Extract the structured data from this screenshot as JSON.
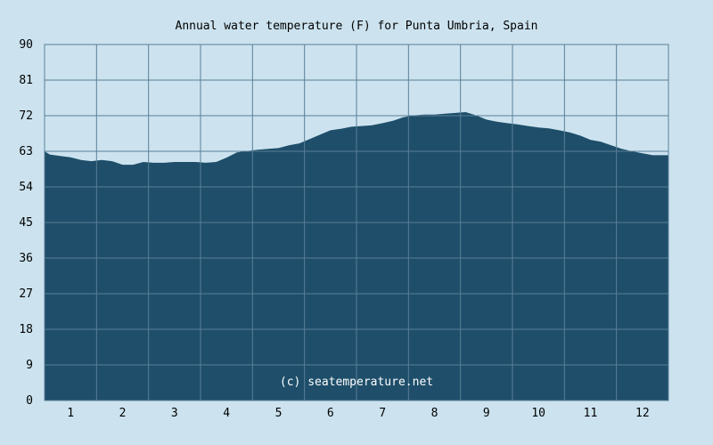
{
  "chart_data": {
    "type": "area",
    "title": "Annual water temperature (F) for Punta Umbria, Spain",
    "xlabel": "",
    "ylabel": "",
    "xlim": [
      0.4,
      12.4
    ],
    "ylim": [
      0,
      90
    ],
    "yticks": [
      "0",
      "9",
      "18",
      "27",
      "36",
      "45",
      "54",
      "63",
      "72",
      "81",
      "90"
    ],
    "xticks": [
      "1",
      "2",
      "3",
      "4",
      "5",
      "6",
      "7",
      "8",
      "9",
      "10",
      "11",
      "12"
    ],
    "grid": true,
    "annotation": "(c) seatemperature.net",
    "colors": {
      "background": "#cce3ef",
      "area": "#1e4e6a",
      "grid": "#5a7f97"
    },
    "series": [
      {
        "x": [
          0.4,
          0.5,
          0.7,
          0.9,
          1.1,
          1.3,
          1.5,
          1.7,
          1.9,
          2.1,
          2.3,
          2.5,
          2.7,
          2.9,
          3.1,
          3.3,
          3.5,
          3.7,
          3.9,
          4.1,
          4.3,
          4.5,
          4.7,
          4.9,
          5.1,
          5.3,
          5.5,
          5.7,
          5.9,
          6.1,
          6.3,
          6.5,
          6.7,
          6.9,
          7.1,
          7.3,
          7.5,
          7.7,
          7.9,
          8.1,
          8.3,
          8.5,
          8.7,
          8.9,
          9.1,
          9.3,
          9.5,
          9.7,
          9.9,
          10.1,
          10.3,
          10.5,
          10.7,
          10.9,
          11.1,
          11.3,
          11.5,
          11.7,
          11.9,
          12.1,
          12.4
        ],
        "values": [
          63,
          62.2,
          61.8,
          61.5,
          60.8,
          60.5,
          60.8,
          60.5,
          59.6,
          59.6,
          60.3,
          60.1,
          60.1,
          60.3,
          60.3,
          60.3,
          60.1,
          60.3,
          61.4,
          62.7,
          63.1,
          63.4,
          63.6,
          63.8,
          64.5,
          65,
          66.1,
          67.2,
          68.3,
          68.7,
          69.2,
          69.4,
          69.6,
          70.1,
          70.7,
          71.6,
          72.1,
          72.3,
          72.3,
          72.5,
          72.7,
          72.9,
          72.1,
          71,
          70.5,
          70.1,
          69.8,
          69.4,
          69,
          68.8,
          68.3,
          67.8,
          67,
          65.9,
          65.4,
          64.5,
          63.6,
          63,
          62.5,
          62,
          62
        ]
      }
    ]
  }
}
